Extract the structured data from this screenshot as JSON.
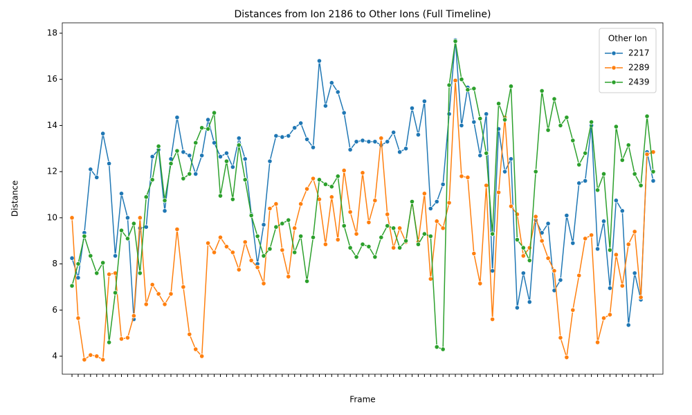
{
  "chart_data": {
    "type": "line",
    "title": "Distances from Ion 2186 to Other Ions (Full Timeline)",
    "x_label": "Frame",
    "y_label": "Distance",
    "categories": [
      null,
      null,
      null,
      null,
      null,
      null,
      null,
      null,
      null,
      null,
      null,
      null,
      null,
      null,
      null,
      null,
      null,
      null,
      null,
      null,
      null,
      null,
      null,
      null,
      null,
      null,
      null,
      null,
      null,
      null,
      null,
      null,
      null,
      null,
      null,
      null,
      null,
      null,
      null,
      null,
      null,
      null,
      null,
      null,
      null,
      null,
      null,
      null,
      null,
      null,
      null,
      null,
      null,
      null,
      null,
      null,
      null,
      null,
      null,
      null,
      null,
      null,
      null,
      null,
      null,
      null,
      null,
      null,
      null,
      null,
      null,
      null,
      null,
      null,
      null,
      null,
      null,
      null,
      null,
      null,
      null,
      null,
      null,
      null,
      null,
      null,
      null,
      null,
      null,
      null,
      null,
      null,
      null,
      null,
      null
    ],
    "legend_title": "Other Ion",
    "legend": "upper right",
    "ylim": [
      3.22,
      18.45
    ],
    "yticks": [
      4,
      6,
      8,
      10,
      12,
      14,
      16,
      18
    ],
    "series": [
      {
        "name": "2217",
        "color": "#1f77b4",
        "values": [
          8.25,
          7.4,
          9.35,
          12.1,
          11.75,
          13.65,
          12.35,
          8.35,
          11.05,
          10.0,
          5.6,
          9.55,
          9.6,
          12.65,
          12.95,
          10.3,
          12.55,
          14.35,
          12.85,
          12.7,
          11.9,
          12.7,
          14.25,
          13.25,
          12.65,
          12.8,
          12.2,
          13.45,
          12.55,
          10.15,
          8.0,
          9.7,
          12.45,
          13.55,
          13.5,
          13.55,
          13.9,
          14.1,
          13.4,
          13.05,
          16.8,
          14.85,
          15.85,
          15.45,
          14.55,
          12.95,
          13.3,
          13.35,
          13.3,
          13.3,
          13.15,
          13.3,
          13.7,
          12.85,
          13.0,
          14.75,
          13.6,
          15.05,
          10.4,
          10.7,
          11.45,
          14.5,
          17.7,
          14.0,
          15.65,
          14.15,
          12.7,
          14.5,
          7.7,
          13.85,
          12.0,
          12.55,
          6.1,
          7.6,
          6.35,
          9.9,
          9.35,
          9.75,
          6.85,
          7.3,
          10.1,
          8.9,
          11.5,
          11.6,
          14.0,
          8.65,
          9.85,
          6.95,
          10.75,
          10.3,
          5.35,
          7.6,
          6.45,
          12.85,
          11.6
        ]
      },
      {
        "name": "2289",
        "color": "#ff7f0e",
        "values": [
          10.0,
          5.65,
          3.85,
          4.05,
          4.0,
          3.85,
          7.55,
          7.6,
          4.75,
          4.8,
          5.75,
          10.0,
          6.25,
          7.1,
          6.7,
          6.25,
          6.7,
          9.5,
          7.0,
          4.95,
          4.3,
          4.0,
          8.9,
          8.5,
          9.15,
          8.75,
          8.5,
          7.75,
          8.95,
          8.15,
          7.85,
          7.15,
          10.4,
          10.6,
          8.6,
          7.45,
          9.55,
          10.6,
          11.25,
          11.7,
          10.8,
          8.85,
          10.9,
          9.05,
          12.05,
          10.25,
          9.3,
          11.95,
          9.8,
          10.75,
          13.45,
          10.15,
          8.7,
          9.55,
          8.95,
          10.7,
          8.95,
          11.05,
          7.35,
          9.85,
          9.55,
          10.65,
          15.95,
          11.8,
          11.75,
          8.45,
          7.15,
          11.4,
          5.6,
          11.1,
          14.35,
          10.5,
          10.15,
          8.35,
          8.7,
          10.05,
          9.0,
          8.25,
          7.7,
          4.8,
          3.95,
          6.0,
          7.5,
          9.1,
          9.25,
          4.6,
          5.65,
          5.8,
          8.4,
          7.05,
          8.85,
          9.4,
          6.55,
          12.75,
          12.85
        ]
      },
      {
        "name": "2439",
        "color": "#2ca02c",
        "values": [
          7.05,
          8.0,
          9.2,
          8.35,
          7.6,
          8.05,
          4.6,
          6.75,
          9.45,
          9.1,
          9.75,
          7.6,
          10.9,
          11.65,
          13.1,
          10.75,
          12.35,
          12.9,
          11.7,
          11.9,
          13.25,
          13.9,
          13.85,
          14.55,
          10.95,
          12.45,
          10.8,
          13.15,
          11.65,
          10.1,
          9.2,
          8.35,
          8.65,
          9.6,
          9.75,
          9.9,
          8.5,
          9.2,
          7.25,
          9.15,
          11.65,
          11.45,
          11.35,
          11.8,
          9.65,
          8.7,
          8.3,
          8.85,
          8.75,
          8.3,
          9.15,
          9.65,
          9.55,
          8.7,
          9.0,
          10.7,
          8.85,
          9.3,
          9.2,
          4.4,
          4.3,
          15.75,
          17.65,
          16.0,
          15.55,
          15.6,
          14.3,
          12.8,
          9.3,
          14.95,
          14.25,
          15.7,
          9.05,
          8.7,
          8.15,
          12.0,
          15.5,
          13.8,
          15.15,
          14.0,
          14.35,
          13.35,
          12.3,
          12.8,
          14.15,
          11.2,
          11.9,
          8.6,
          13.95,
          12.5,
          13.15,
          11.9,
          11.4,
          14.4,
          12.0
        ]
      }
    ]
  }
}
